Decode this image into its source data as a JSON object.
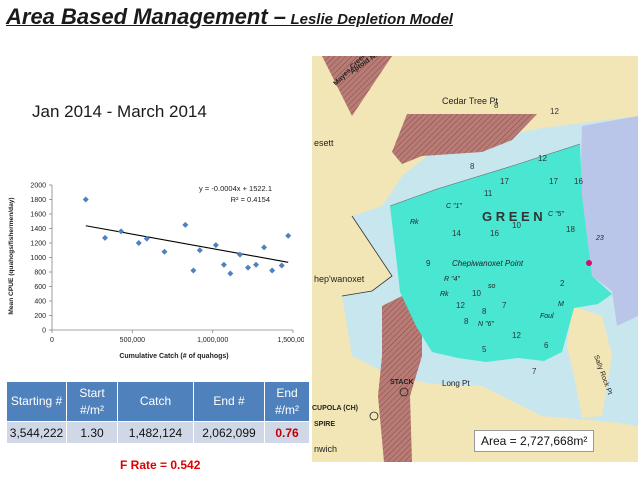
{
  "title": {
    "main": "Area Based Management –",
    "sub": "Leslie Depletion Model"
  },
  "period": "Jan 2014 - March 2014",
  "chart_data": {
    "type": "scatter",
    "xlabel": "Cumulative Catch (# of quahogs)",
    "ylabel": "Mean CPUE (quahogs/fishermen/day)",
    "xlim": [
      0,
      1500000
    ],
    "ylim": [
      0,
      2000
    ],
    "xticks": [
      0,
      500000,
      1000000,
      1500000
    ],
    "xtick_labels": [
      "0",
      "500,000",
      "1,000,000",
      "1,500,000"
    ],
    "yticks": [
      0,
      200,
      400,
      600,
      800,
      1000,
      1200,
      1400,
      1600,
      1800,
      2000
    ],
    "ytick_labels": [
      "0",
      "200",
      "400",
      "600",
      "800",
      "1000",
      "1200",
      "1400",
      "1600",
      "1800",
      "2000"
    ],
    "points": [
      {
        "x": 210000,
        "y": 1800
      },
      {
        "x": 330000,
        "y": 1270
      },
      {
        "x": 430000,
        "y": 1360
      },
      {
        "x": 540000,
        "y": 1200
      },
      {
        "x": 590000,
        "y": 1260
      },
      {
        "x": 700000,
        "y": 1080
      },
      {
        "x": 830000,
        "y": 1450
      },
      {
        "x": 880000,
        "y": 820
      },
      {
        "x": 920000,
        "y": 1100
      },
      {
        "x": 1020000,
        "y": 1170
      },
      {
        "x": 1070000,
        "y": 900
      },
      {
        "x": 1110000,
        "y": 780
      },
      {
        "x": 1170000,
        "y": 1040
      },
      {
        "x": 1220000,
        "y": 860
      },
      {
        "x": 1270000,
        "y": 900
      },
      {
        "x": 1320000,
        "y": 1140
      },
      {
        "x": 1370000,
        "y": 820
      },
      {
        "x": 1430000,
        "y": 890
      },
      {
        "x": 1470000,
        "y": 1300
      }
    ],
    "trendline": {
      "slope": -0.0004,
      "intercept": 1522.1,
      "equation": "y = -0.0004x + 1522.1",
      "r2": "R² = 0.4154"
    },
    "colors": {
      "points": "#4f81bd",
      "trend": "#000000"
    },
    "grid": false
  },
  "table": {
    "headers": [
      "Starting #",
      "Start #/m²",
      "Catch",
      "End #",
      "End #/m²"
    ],
    "row": [
      "3,544,222",
      "1.30",
      "1,482,124",
      "2,062,099",
      "0.76"
    ],
    "highlight_color": "#c00000",
    "header_color": "#4f81bd"
  },
  "f_rate": "F Rate = 0.542",
  "map": {
    "labels": [
      "Cedar Tree Pt",
      "Chepiwanoxet Point",
      "Long Pt",
      "STACK",
      "CUPOLA (CH)",
      "SPIRE",
      "G R E E N",
      "Sally Rock Pt",
      "Mayes Creek",
      "Aptoid Neck",
      "esett",
      "hep'wanoxet",
      "nwich",
      "Foul"
    ],
    "depths": [
      "8",
      "12",
      "12",
      "17",
      "16",
      "17",
      "8",
      "11",
      "10",
      "16",
      "18",
      "14",
      "12",
      "10",
      "7",
      "12",
      "6",
      "7",
      "5",
      "9",
      "8",
      "8",
      "2"
    ],
    "markers": [
      "C \"1\"",
      "C \"5\"",
      "N \"6\"",
      "R \"4\"",
      "Rk",
      "Rk",
      "so",
      "M",
      "23"
    ],
    "area_label": "Area = 2,727,668m²",
    "colors": {
      "water": "#c8e6ee",
      "zone": "#49e6d2",
      "land": "#f3e6b6",
      "hatch": "#b87c76",
      "side_zone": "#b9c6ea"
    }
  }
}
